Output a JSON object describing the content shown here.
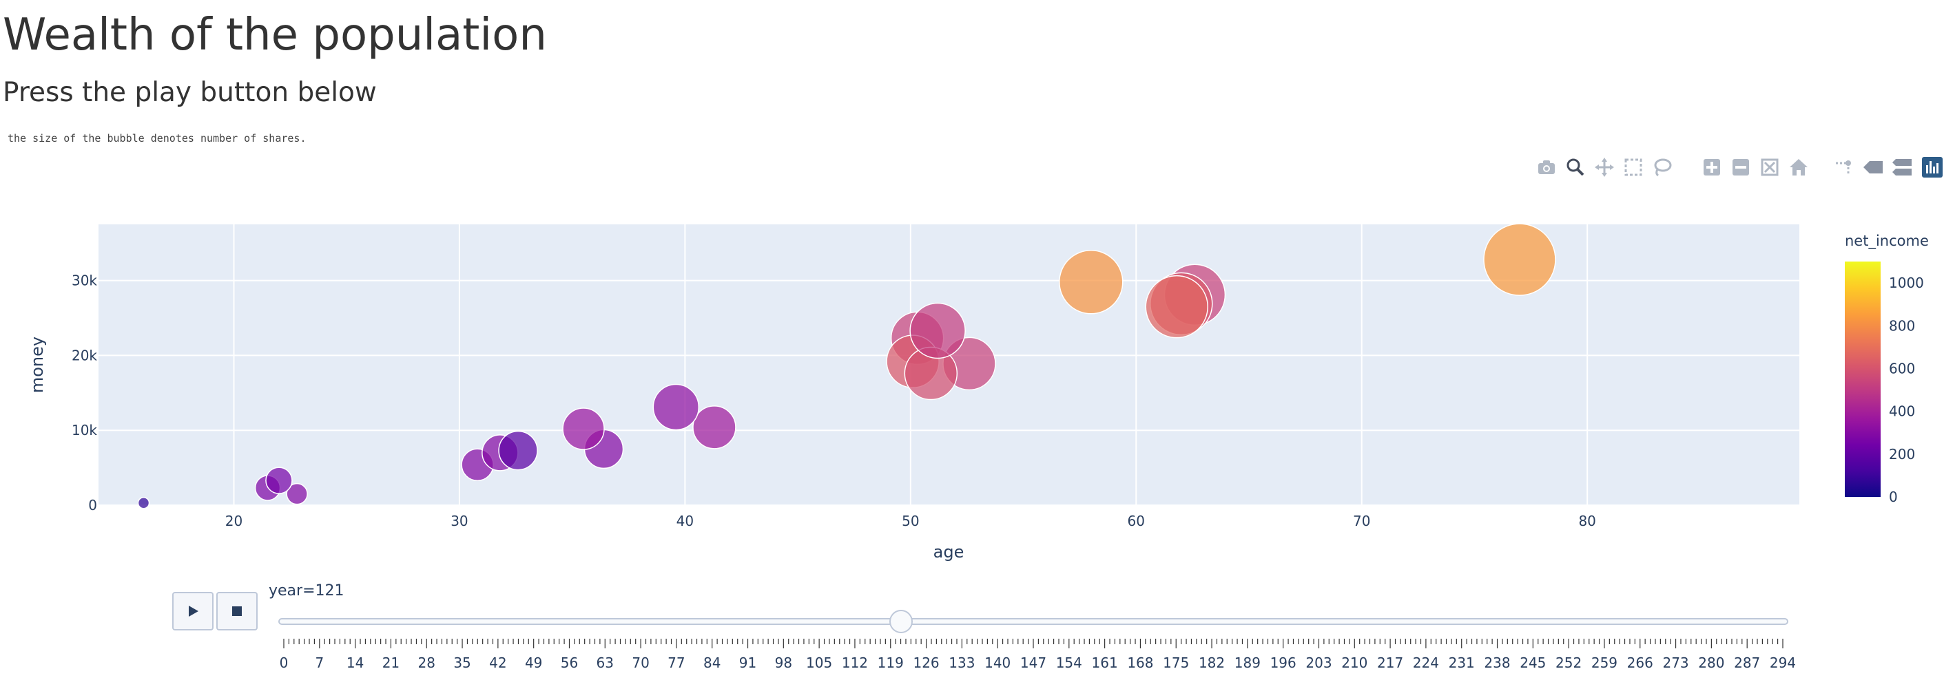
{
  "page": {
    "title": "Wealth of the population",
    "subtitle": "Press the play button below",
    "note": "the size of the bubble denotes number of shares."
  },
  "modebar": {
    "icons": [
      "camera-icon",
      "zoom-icon",
      "pan-icon",
      "box-select-icon",
      "lasso-select-icon",
      "zoom-in-icon",
      "zoom-out-icon",
      "autoscale-icon",
      "reset-axes-icon",
      "spike-lines-icon",
      "hover-closest-icon",
      "hover-compare-icon",
      "plotly-logo-icon"
    ]
  },
  "chart_data": {
    "type": "scatter",
    "xlabel": "age",
    "ylabel": "money",
    "x_ticks": [
      20,
      30,
      40,
      50,
      60,
      70,
      80
    ],
    "y_ticks": [
      0,
      10000,
      20000,
      30000
    ],
    "y_tick_labels": [
      "0",
      "10k",
      "20k",
      "30k"
    ],
    "xlim": [
      14.0,
      89.4
    ],
    "ylim": [
      0,
      37500
    ],
    "grid": true,
    "size_note": "number of shares",
    "colorbar": {
      "title": "net_income",
      "range": [
        0,
        1100
      ],
      "ticks": [
        0,
        200,
        400,
        600,
        800,
        1000
      ],
      "colorscale": [
        "#0d0887",
        "#46039f",
        "#7201a8",
        "#9c179e",
        "#bd3786",
        "#d8576b",
        "#ed7953",
        "#fb9f3a",
        "#fdca26",
        "#f0f921"
      ]
    },
    "points": [
      {
        "age": 16.0,
        "money": 300,
        "net_income": 80,
        "size": 8
      },
      {
        "age": 21.5,
        "money": 2300,
        "net_income": 280,
        "size": 18
      },
      {
        "age": 22.0,
        "money": 3300,
        "net_income": 260,
        "size": 19
      },
      {
        "age": 22.8,
        "money": 1500,
        "net_income": 300,
        "size": 15
      },
      {
        "age": 30.8,
        "money": 5400,
        "net_income": 300,
        "size": 23
      },
      {
        "age": 31.8,
        "money": 7000,
        "net_income": 300,
        "size": 26
      },
      {
        "age": 32.6,
        "money": 7300,
        "net_income": 180,
        "size": 28
      },
      {
        "age": 35.5,
        "money": 10200,
        "net_income": 360,
        "size": 30
      },
      {
        "age": 36.4,
        "money": 7500,
        "net_income": 300,
        "size": 28
      },
      {
        "age": 39.6,
        "money": 13100,
        "net_income": 330,
        "size": 33
      },
      {
        "age": 41.3,
        "money": 10400,
        "net_income": 380,
        "size": 31
      },
      {
        "age": 50.3,
        "money": 22300,
        "net_income": 540,
        "size": 38
      },
      {
        "age": 51.2,
        "money": 23300,
        "net_income": 520,
        "size": 40
      },
      {
        "age": 50.1,
        "money": 19200,
        "net_income": 620,
        "size": 38
      },
      {
        "age": 52.6,
        "money": 18900,
        "net_income": 540,
        "size": 38
      },
      {
        "age": 50.9,
        "money": 17600,
        "net_income": 590,
        "size": 38
      },
      {
        "age": 58.0,
        "money": 29800,
        "net_income": 820,
        "size": 46
      },
      {
        "age": 62.6,
        "money": 28100,
        "net_income": 540,
        "size": 44
      },
      {
        "age": 62.0,
        "money": 26900,
        "net_income": 620,
        "size": 45
      },
      {
        "age": 61.8,
        "money": 26500,
        "net_income": 660,
        "size": 45
      },
      {
        "age": 77.0,
        "money": 32800,
        "net_income": 840,
        "size": 52
      }
    ]
  },
  "animation": {
    "current_label": "year=121",
    "current_value": 121,
    "min": 0,
    "max": 294,
    "tick_labels": [
      "0",
      "7",
      "14",
      "21",
      "28",
      "35",
      "42",
      "49",
      "56",
      "63",
      "70",
      "77",
      "84",
      "91",
      "98",
      "105",
      "112",
      "119",
      "126",
      "133",
      "140",
      "147",
      "154",
      "161",
      "168",
      "175",
      "182",
      "189",
      "196",
      "203",
      "210",
      "217",
      "224",
      "231",
      "238",
      "245",
      "252",
      "259",
      "266",
      "273",
      "280",
      "287",
      "294"
    ]
  }
}
